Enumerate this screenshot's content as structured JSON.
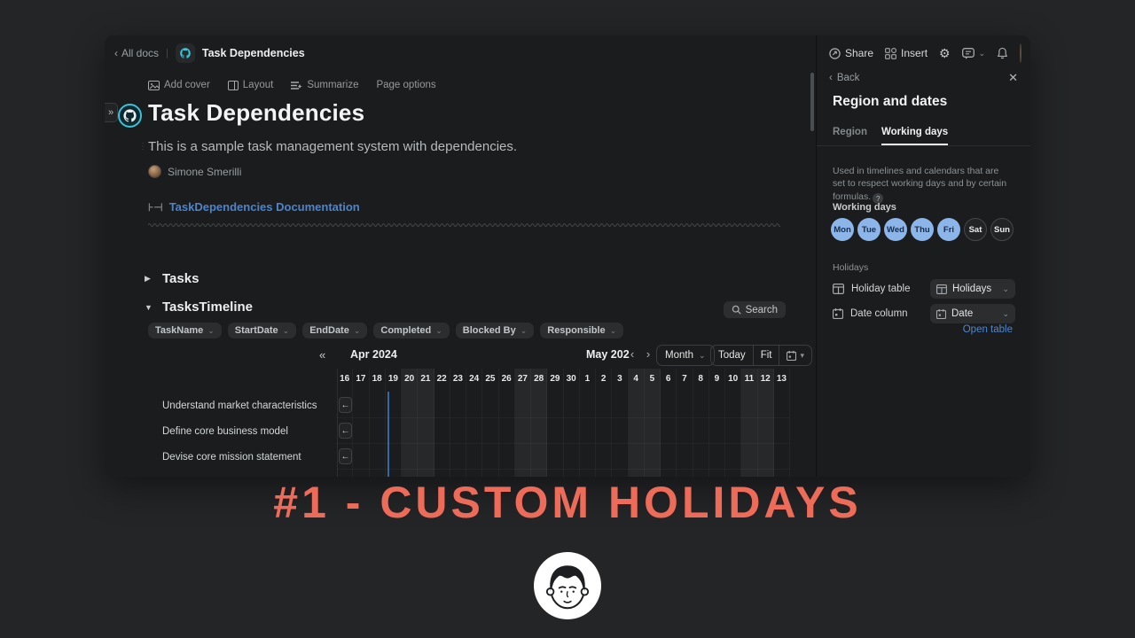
{
  "topbar": {
    "back_label": "All docs",
    "doc_title": "Task Dependencies"
  },
  "toolbar": {
    "add_cover": "Add cover",
    "layout": "Layout",
    "summarize": "Summarize",
    "page_options": "Page options"
  },
  "doc": {
    "title": "Task Dependencies",
    "subtitle": "This is a sample task management system with dependencies.",
    "author": "Simone Smerilli",
    "doc_link": "TaskDependencies Documentation",
    "tasks_section": "Tasks",
    "timeline_section": "TasksTimeline",
    "search_label": "Search",
    "filters": [
      "TaskName",
      "StartDate",
      "EndDate",
      "Completed",
      "Blocked By",
      "Responsible"
    ]
  },
  "timeline": {
    "left_month": "Apr 2024",
    "right_month": "May 202",
    "zoom_label": "Month",
    "today_label": "Today",
    "fit_label": "Fit",
    "days": [
      "16",
      "17",
      "18",
      "19",
      "20",
      "21",
      "22",
      "23",
      "24",
      "25",
      "26",
      "27",
      "28",
      "29",
      "30",
      "1",
      "2",
      "3",
      "4",
      "5",
      "6",
      "7",
      "8",
      "9",
      "10",
      "11",
      "12",
      "13"
    ],
    "weekend_indices": [
      4,
      5,
      11,
      12,
      18,
      19,
      25,
      26
    ],
    "today_index": 3,
    "tasks": [
      "Understand market characteristics",
      "Define core business model",
      "Devise core mission statement"
    ]
  },
  "actions": {
    "share": "Share",
    "insert": "Insert"
  },
  "panel": {
    "back_label": "Back",
    "title": "Region and dates",
    "tabs": [
      {
        "label": "Region",
        "active": false
      },
      {
        "label": "Working days",
        "active": true
      }
    ],
    "description": "Used in timelines and calendars that are set to respect working days and by certain formulas.",
    "working_days_label": "Working days",
    "day_chips": [
      {
        "label": "Mon",
        "active": true
      },
      {
        "label": "Tue",
        "active": true
      },
      {
        "label": "Wed",
        "active": true
      },
      {
        "label": "Thu",
        "active": true
      },
      {
        "label": "Fri",
        "active": true
      },
      {
        "label": "Sat",
        "active": false
      },
      {
        "label": "Sun",
        "active": false
      }
    ],
    "holidays_label": "Holidays",
    "holiday_table_label": "Holiday table",
    "holiday_table_value": "Holidays",
    "date_column_label": "Date column",
    "date_column_value": "Date",
    "open_table_label": "Open table"
  },
  "caption": "#1 - CUSTOM HOLIDAYS",
  "colors": {
    "accent_blue": "#8cb6e9",
    "link_blue": "#4e84c9",
    "coral": "#ec6b59",
    "today_line": "#35689f"
  }
}
